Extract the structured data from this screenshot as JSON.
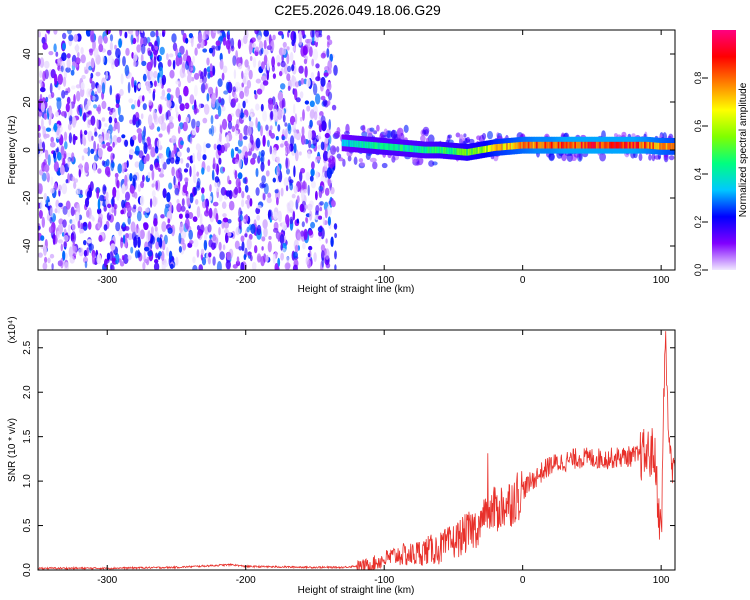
{
  "page_title": "C2E5.2026.049.18.06.G29",
  "chart_data": [
    {
      "type": "heatmap",
      "title": "C2E5.2026.049.18.06.G29",
      "xlabel": "Height of straight line (km)",
      "ylabel": "Frequency (Hz)",
      "xlim": [
        -350,
        110
      ],
      "ylim": [
        -50,
        50
      ],
      "x_ticks": [
        -300,
        -200,
        -100,
        0,
        100
      ],
      "y_ticks": [
        -40,
        -20,
        0,
        20,
        40
      ],
      "colorbar": {
        "label": "Normalized spectral amplitude",
        "range": [
          0.0,
          1.0
        ],
        "ticks": [
          "0.0",
          "0.2",
          "0.4",
          "0.6",
          "0.8"
        ],
        "colors": [
          "#f0e8ff",
          "#8000ff",
          "#0000ff",
          "#00c8ff",
          "#00ff80",
          "#80ff00",
          "#ffff00",
          "#ff8000",
          "#ff0000",
          "#ff0080"
        ]
      },
      "noise_region_x": [
        -350,
        -135
      ],
      "ridge": [
        {
          "x": -130,
          "y": 3.0,
          "amp": 0.35
        },
        {
          "x": -120,
          "y": 2.5,
          "amp": 0.4
        },
        {
          "x": -110,
          "y": 2.0,
          "amp": 0.45
        },
        {
          "x": -100,
          "y": 1.5,
          "amp": 0.45
        },
        {
          "x": -90,
          "y": 1.0,
          "amp": 0.45
        },
        {
          "x": -80,
          "y": 0.5,
          "amp": 0.45
        },
        {
          "x": -70,
          "y": 0.0,
          "amp": 0.45
        },
        {
          "x": -60,
          "y": 0.0,
          "amp": 0.5
        },
        {
          "x": -50,
          "y": -0.5,
          "amp": 0.5
        },
        {
          "x": -40,
          "y": -1.0,
          "amp": 0.55
        },
        {
          "x": -30,
          "y": 0.0,
          "amp": 0.6
        },
        {
          "x": -20,
          "y": 1.0,
          "amp": 0.7
        },
        {
          "x": -10,
          "y": 1.5,
          "amp": 0.75
        },
        {
          "x": 0,
          "y": 2.0,
          "amp": 0.8
        },
        {
          "x": 10,
          "y": 2.0,
          "amp": 0.85
        },
        {
          "x": 20,
          "y": 2.0,
          "amp": 0.85
        },
        {
          "x": 30,
          "y": 2.0,
          "amp": 0.9
        },
        {
          "x": 40,
          "y": 2.0,
          "amp": 0.9
        },
        {
          "x": 50,
          "y": 2.0,
          "amp": 0.9
        },
        {
          "x": 60,
          "y": 2.0,
          "amp": 0.9
        },
        {
          "x": 70,
          "y": 2.0,
          "amp": 0.9
        },
        {
          "x": 80,
          "y": 2.0,
          "amp": 0.9
        },
        {
          "x": 90,
          "y": 2.0,
          "amp": 0.85
        },
        {
          "x": 100,
          "y": 1.5,
          "amp": 0.8
        },
        {
          "x": 110,
          "y": 1.5,
          "amp": 0.75
        }
      ]
    },
    {
      "type": "line",
      "xlabel": "Height of straight line (km)",
      "ylabel": "SNR (10 * v/v)",
      "y_multiplier": "(x10⁴)",
      "xlim": [
        -350,
        110
      ],
      "ylim": [
        0.0,
        2.7
      ],
      "x_ticks": [
        -300,
        -200,
        -100,
        0,
        100
      ],
      "y_ticks": [
        "0.0",
        "0.5",
        "1.0",
        "1.5",
        "2.0",
        "2.5"
      ],
      "series": [
        {
          "color": "#e8302a",
          "x": [
            -350,
            -300,
            -250,
            -210,
            -200,
            -150,
            -130,
            -110,
            -100,
            -90,
            -80,
            -70,
            -60,
            -50,
            -40,
            -30,
            -20,
            -10,
            0,
            10,
            20,
            30,
            40,
            50,
            60,
            70,
            80,
            90,
            95,
            100,
            103,
            106,
            110
          ],
          "y": [
            0.02,
            0.02,
            0.03,
            0.06,
            0.04,
            0.03,
            0.03,
            0.06,
            0.12,
            0.17,
            0.17,
            0.22,
            0.24,
            0.32,
            0.42,
            0.52,
            0.68,
            0.75,
            0.9,
            1.05,
            1.18,
            1.22,
            1.26,
            1.26,
            1.25,
            1.27,
            1.28,
            1.3,
            1.32,
            0.35,
            2.7,
            1.25,
            1.28
          ]
        }
      ]
    }
  ]
}
